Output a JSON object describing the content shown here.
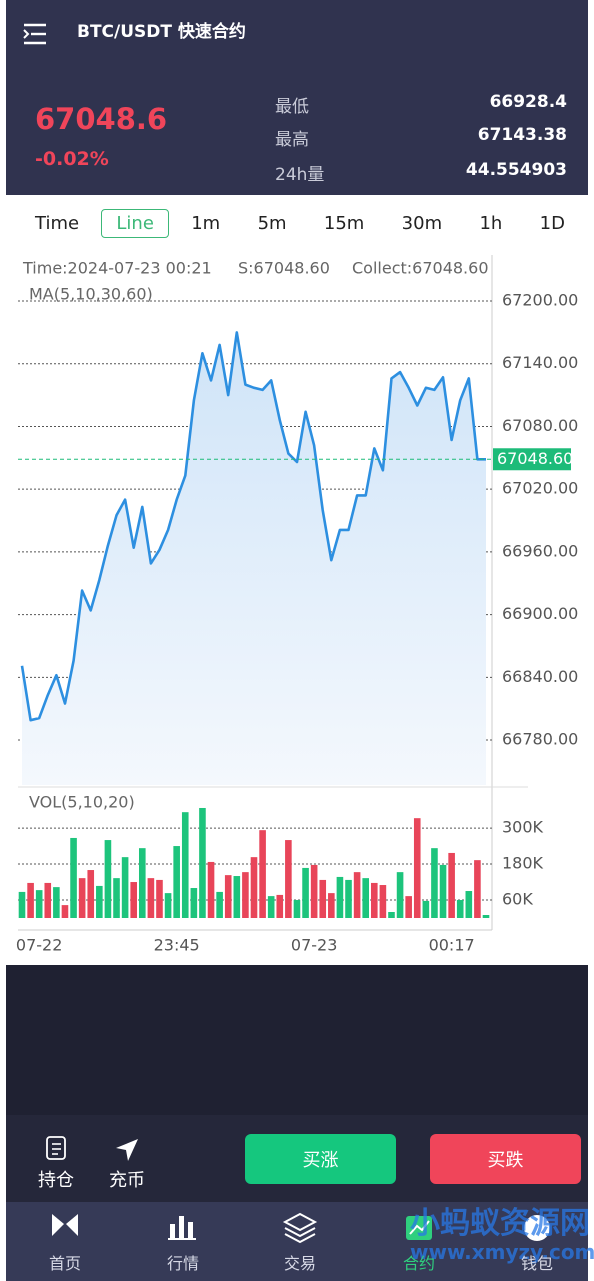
{
  "header": {
    "title": "BTC/USDT 快速合约"
  },
  "ticker": {
    "price": 67048.6,
    "change": "-0.02%",
    "stats": [
      {
        "label": "最低",
        "value": 66928.4
      },
      {
        "label": "最高",
        "value": 67143.38
      },
      {
        "label": "24h量",
        "value": 44.554903
      }
    ]
  },
  "tabs": {
    "items": [
      "Time",
      "Line",
      "1m",
      "5m",
      "15m",
      "30m",
      "1h",
      "1D"
    ],
    "active": 1
  },
  "chart_data": [
    {
      "type": "line",
      "info": [
        "Time:2024-07-23 00:21",
        "S:67048.60",
        "Collect:67048.60"
      ],
      "indicator": "MA(5,10,30,60)",
      "color": "#2d8fe0",
      "values": [
        66851,
        66799,
        66801,
        66823,
        66842,
        66815,
        66856,
        66923,
        66904,
        66933,
        66966,
        66995,
        67010,
        66964,
        67003,
        66949,
        66962,
        66981,
        67010,
        67033,
        67105,
        67150,
        67124,
        67158,
        67110,
        67170,
        67120,
        67117,
        67115,
        67124,
        67086,
        67054,
        67046,
        67094,
        67062,
        67000,
        66952,
        66981,
        66981,
        67014,
        67014,
        67059,
        67038,
        67126,
        67132,
        67117,
        67100,
        67117,
        67115,
        67127,
        67067,
        67105,
        67126,
        67048.6,
        67048.6
      ],
      "ylim": [
        66737,
        67244
      ],
      "yticks": [
        {
          "value": 67200,
          "label": "67200.00"
        },
        {
          "value": 67140,
          "label": "67140.00"
        },
        {
          "value": 67080,
          "label": "67080.00"
        },
        {
          "value": 67020,
          "label": "67020.00"
        },
        {
          "value": 66960,
          "label": "66960.00"
        },
        {
          "value": 66900,
          "label": "66900.00"
        },
        {
          "value": 66840,
          "label": "66840.00"
        },
        {
          "value": 66780,
          "label": "66780.00"
        }
      ],
      "grid": true,
      "last_price": {
        "value": 67048.6,
        "label": "67048.60"
      },
      "last_price_color": "#1dbb79"
    },
    {
      "type": "bar",
      "indicator": "VOL(5,10,20)",
      "categories": [
        null,
        null,
        "07-22",
        null,
        null,
        null,
        null,
        null,
        null,
        null,
        null,
        null,
        null,
        null,
        null,
        null,
        null,
        null,
        "23:45",
        null,
        null,
        null,
        null,
        null,
        null,
        null,
        null,
        null,
        null,
        null,
        null,
        null,
        null,
        null,
        "07-23",
        null,
        null,
        null,
        null,
        null,
        null,
        null,
        null,
        null,
        null,
        null,
        null,
        null,
        null,
        null,
        "00:17",
        null,
        null,
        null,
        null
      ],
      "values": [
        87000,
        117000,
        93000,
        117000,
        103000,
        43000,
        267000,
        133000,
        160000,
        107000,
        260000,
        133000,
        203000,
        120000,
        233000,
        133000,
        127000,
        83000,
        240000,
        353000,
        100000,
        367000,
        187000,
        87000,
        143000,
        140000,
        153000,
        203000,
        293000,
        73000,
        77000,
        260000,
        60000,
        167000,
        177000,
        127000,
        83000,
        137000,
        127000,
        153000,
        133000,
        117000,
        110000,
        20000,
        153000,
        73000,
        333000,
        57000,
        233000,
        177000,
        217000,
        60000,
        90000,
        193000,
        10000
      ],
      "colors": [
        "#1dc47c",
        "#e84559",
        "#1dc47c",
        "#e84559",
        "#1dc47c",
        "#e84559",
        "#1dc47c",
        "#e84559",
        "#e84559",
        "#1dc47c",
        "#1dc47c",
        "#1dc47c",
        "#1dc47c",
        "#e84559",
        "#1dc47c",
        "#e84559",
        "#e84559",
        "#1dc47c",
        "#1dc47c",
        "#1dc47c",
        "#1dc47c",
        "#1dc47c",
        "#e84559",
        "#1dc47c",
        "#e84559",
        "#1dc47c",
        "#e84559",
        "#e84559",
        "#e84559",
        "#1dc47c",
        "#e84559",
        "#e84559",
        "#1dc47c",
        "#1dc47c",
        "#e84559",
        "#e84559",
        "#e84559",
        "#1dc47c",
        "#1dc47c",
        "#e84559",
        "#1dc47c",
        "#e84559",
        "#e84559",
        "#1dc47c",
        "#1dc47c",
        "#e84559",
        "#e84559",
        "#1dc47c",
        "#1dc47c",
        "#1dc47c",
        "#e84559",
        "#1dc47c",
        "#1dc47c",
        "#e84559",
        "#1dc47c"
      ],
      "ylim": [
        0,
        427000
      ],
      "yticks": [
        {
          "value": 300000,
          "label": "300K"
        },
        {
          "value": 180000,
          "label": "180K"
        },
        {
          "value": 60000,
          "label": "60K"
        }
      ],
      "grid": true
    }
  ],
  "actions": {
    "links": [
      "持仓",
      "充币"
    ],
    "buy": "买涨",
    "sell": "买跌"
  },
  "nav": {
    "items": [
      "首页",
      "行情",
      "交易",
      "合约",
      "钱包"
    ],
    "active": 3
  },
  "watermark": {
    "title": "小蚂蚁资源网",
    "url": "www.xmyzy.com"
  }
}
